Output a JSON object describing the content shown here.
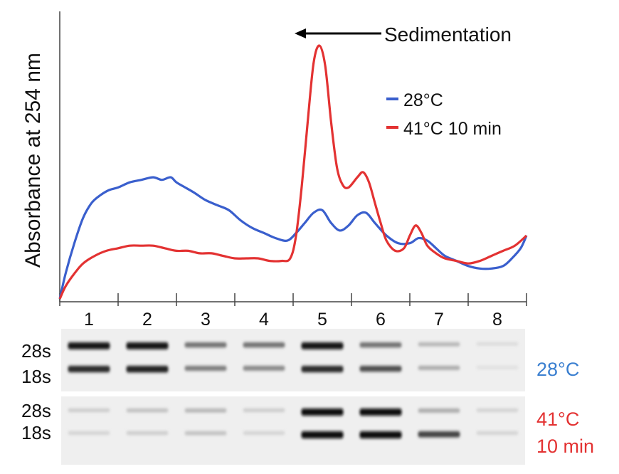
{
  "chart_data": {
    "type": "line",
    "ylabel": "Absorbance at 254 nm",
    "annotation": "Sedimentation",
    "x_unit": "fraction",
    "xlim": [
      0,
      8
    ],
    "ylim": [
      0,
      1
    ],
    "tick_labels": [
      "1",
      "2",
      "3",
      "4",
      "5",
      "6",
      "7",
      "8"
    ],
    "series": [
      {
        "name": "28°C",
        "color": "#3a5fcd",
        "x": [
          0,
          0.1,
          0.25,
          0.4,
          0.55,
          0.7,
          0.85,
          1.0,
          1.2,
          1.4,
          1.6,
          1.75,
          1.9,
          2.0,
          2.15,
          2.3,
          2.5,
          2.7,
          2.9,
          3.1,
          3.3,
          3.5,
          3.7,
          3.9,
          4.05,
          4.2,
          4.35,
          4.5,
          4.65,
          4.8,
          4.95,
          5.1,
          5.25,
          5.4,
          5.6,
          5.8,
          6.0,
          6.15,
          6.3,
          6.45,
          6.6,
          6.8,
          7.0,
          7.2,
          7.4,
          7.6,
          7.75,
          7.9,
          8.0
        ],
        "values": [
          0.0,
          0.1,
          0.22,
          0.32,
          0.38,
          0.41,
          0.43,
          0.44,
          0.46,
          0.47,
          0.48,
          0.47,
          0.48,
          0.46,
          0.44,
          0.42,
          0.39,
          0.37,
          0.35,
          0.31,
          0.28,
          0.26,
          0.24,
          0.23,
          0.26,
          0.3,
          0.34,
          0.35,
          0.3,
          0.27,
          0.29,
          0.33,
          0.34,
          0.3,
          0.25,
          0.22,
          0.22,
          0.24,
          0.23,
          0.2,
          0.17,
          0.15,
          0.13,
          0.12,
          0.12,
          0.13,
          0.16,
          0.2,
          0.25
        ]
      },
      {
        "name": "41°C 10 min",
        "color": "#e33232",
        "x": [
          0,
          0.1,
          0.25,
          0.4,
          0.6,
          0.8,
          1.0,
          1.2,
          1.4,
          1.6,
          1.8,
          2.0,
          2.2,
          2.4,
          2.6,
          2.8,
          3.0,
          3.2,
          3.4,
          3.6,
          3.8,
          3.95,
          4.05,
          4.15,
          4.25,
          4.35,
          4.45,
          4.55,
          4.65,
          4.75,
          4.85,
          4.95,
          5.1,
          5.2,
          5.3,
          5.4,
          5.5,
          5.6,
          5.75,
          5.9,
          6.0,
          6.1,
          6.2,
          6.3,
          6.45,
          6.6,
          6.8,
          7.0,
          7.2,
          7.4,
          7.6,
          7.8,
          8.0
        ],
        "values": [
          0.0,
          0.05,
          0.1,
          0.14,
          0.17,
          0.19,
          0.2,
          0.21,
          0.21,
          0.21,
          0.2,
          0.19,
          0.19,
          0.18,
          0.18,
          0.17,
          0.16,
          0.16,
          0.16,
          0.15,
          0.15,
          0.16,
          0.25,
          0.45,
          0.7,
          0.93,
          1.0,
          0.92,
          0.7,
          0.52,
          0.45,
          0.44,
          0.48,
          0.5,
          0.46,
          0.38,
          0.3,
          0.23,
          0.19,
          0.2,
          0.25,
          0.29,
          0.26,
          0.21,
          0.18,
          0.16,
          0.15,
          0.14,
          0.15,
          0.17,
          0.19,
          0.21,
          0.25
        ]
      }
    ],
    "gels": [
      {
        "label": "28°C",
        "label_color": "#3a7fd0",
        "bands": [
          "28s",
          "18s"
        ],
        "lanes_28s": [
          0.95,
          0.95,
          0.55,
          0.55,
          0.95,
          0.55,
          0.25,
          0.08
        ],
        "lanes_18s": [
          0.85,
          0.9,
          0.5,
          0.45,
          0.85,
          0.7,
          0.3,
          0.06
        ]
      },
      {
        "label_line1": "41°C",
        "label_line2": "10 min",
        "label_color": "#e33232",
        "bands": [
          "28s",
          "18s"
        ],
        "lanes_28s": [
          0.15,
          0.2,
          0.25,
          0.15,
          1.0,
          1.0,
          0.3,
          0.12
        ],
        "lanes_18s": [
          0.12,
          0.15,
          0.2,
          0.12,
          1.0,
          1.0,
          0.75,
          0.12
        ]
      }
    ]
  }
}
